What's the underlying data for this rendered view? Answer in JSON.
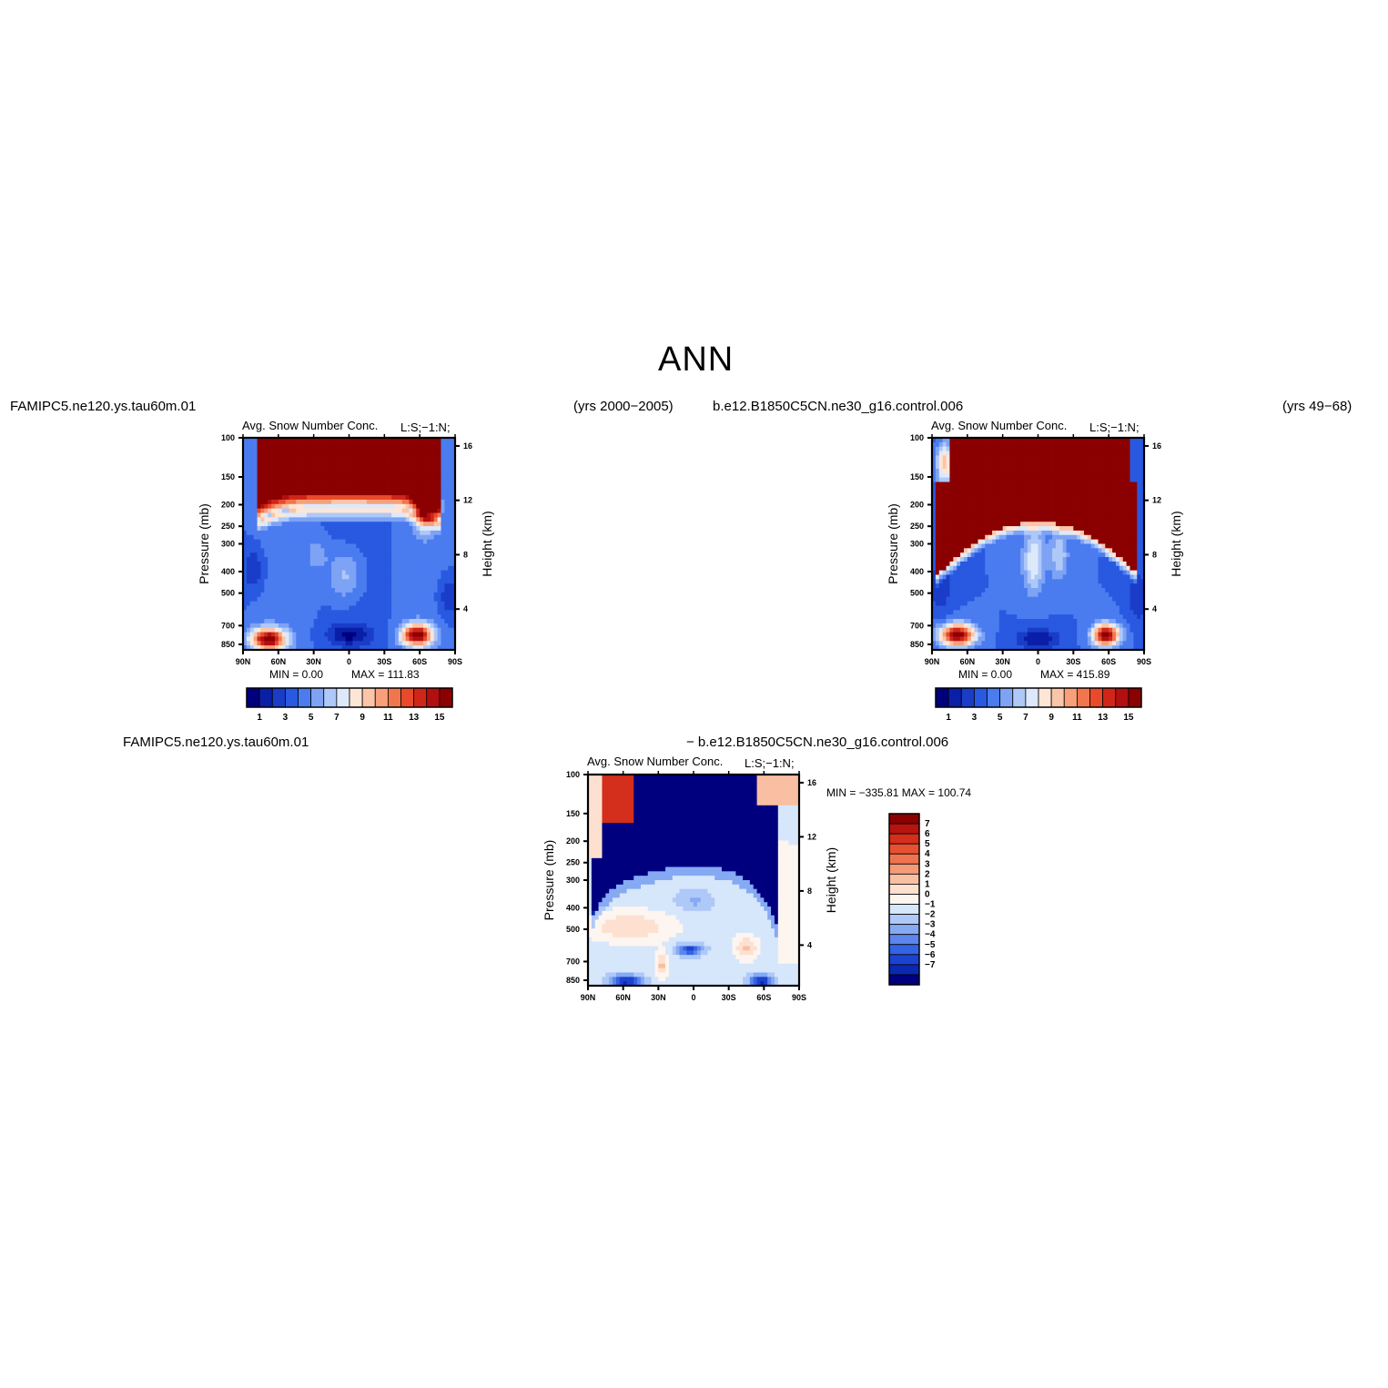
{
  "header": {
    "title": "ANN"
  },
  "top_left": {
    "case_name": "FAMIPC5.ne120.ys.tau60m.01",
    "years": "(yrs 2000−2005)",
    "plot_title": "Avg. Snow Number Conc.",
    "units": "L:S;−1:N;",
    "min_text": "MIN =     0.00",
    "max_text": "MAX = 111.83"
  },
  "top_right": {
    "case_name": "b.e12.B1850C5CN.ne30_g16.control.006",
    "years": "(yrs 49−68)",
    "plot_title": "Avg. Snow Number Conc.",
    "units": "L:S;−1:N;",
    "min_text": "MIN =     0.00",
    "max_text": "MAX = 415.89"
  },
  "bottom": {
    "case_name_a": "FAMIPC5.ne120.ys.tau60m.01",
    "case_name_b": "− b.e12.B1850C5CN.ne30_g16.control.006",
    "plot_title": "Avg. Snow Number Conc.",
    "units": "L:S;−1:N;",
    "minmax_text": "MIN = −335.81   MAX = 100.74"
  },
  "chart_data": [
    {
      "type": "heatmap",
      "subtype": "zonal-mean pressure-latitude contour",
      "title": "Avg. Snow Number Conc.",
      "units": "L:S;−1:N;",
      "ylabel": "Pressure (mb)",
      "ylabel_right": "Height (km)",
      "x_ticks": [
        "90N",
        "60N",
        "30N",
        "0",
        "30S",
        "60S",
        "90S"
      ],
      "y_ticks": [
        "100",
        "150",
        "200",
        "250",
        "300",
        "400",
        "500",
        "700",
        "850"
      ],
      "y_ticks_right": [
        "16",
        "12",
        "8",
        "4"
      ],
      "yscale": "log",
      "ylim": [
        100,
        900
      ],
      "min": 0.0,
      "max": 111.83,
      "colorbar_labels": [
        "1",
        "3",
        "5",
        "7",
        "9",
        "11",
        "13",
        "15"
      ],
      "colorbar_colors": [
        "#00007f",
        "#0a1fa8",
        "#1a3dc8",
        "#2859e0",
        "#4a7cf0",
        "#7ea3f5",
        "#aec8f8",
        "#dde9fb",
        "#fde6d6",
        "#fbc5a8",
        "#f7a07a",
        "#f2764d",
        "#e84a2b",
        "#d0261a",
        "#b30e10",
        "#8b0000"
      ]
    },
    {
      "type": "heatmap",
      "subtype": "zonal-mean pressure-latitude contour",
      "title": "Avg. Snow Number Conc.",
      "units": "L:S;−1:N;",
      "ylabel": "Pressure (mb)",
      "ylabel_right": "Height (km)",
      "x_ticks": [
        "90N",
        "60N",
        "30N",
        "0",
        "30S",
        "60S",
        "90S"
      ],
      "y_ticks": [
        "100",
        "150",
        "200",
        "250",
        "300",
        "400",
        "500",
        "700",
        "850"
      ],
      "y_ticks_right": [
        "16",
        "12",
        "8",
        "4"
      ],
      "yscale": "log",
      "ylim": [
        100,
        900
      ],
      "min": 0.0,
      "max": 415.89,
      "colorbar_labels": [
        "1",
        "3",
        "5",
        "7",
        "9",
        "11",
        "13",
        "15"
      ],
      "colorbar_colors": [
        "#00007f",
        "#0a1fa8",
        "#1a3dc8",
        "#2859e0",
        "#4a7cf0",
        "#7ea3f5",
        "#aec8f8",
        "#dde9fb",
        "#fde6d6",
        "#fbc5a8",
        "#f7a07a",
        "#f2764d",
        "#e84a2b",
        "#d0261a",
        "#b30e10",
        "#8b0000"
      ]
    },
    {
      "type": "heatmap",
      "subtype": "zonal-mean pressure-latitude difference contour",
      "title": "Avg. Snow Number Conc.",
      "units": "L:S;−1:N;",
      "ylabel": "Pressure (mb)",
      "ylabel_right": "Height (km)",
      "x_ticks": [
        "90N",
        "60N",
        "30N",
        "0",
        "30S",
        "60S",
        "90S"
      ],
      "y_ticks": [
        "100",
        "150",
        "200",
        "250",
        "300",
        "400",
        "500",
        "700",
        "850"
      ],
      "y_ticks_right": [
        "16",
        "12",
        "8",
        "4"
      ],
      "yscale": "log",
      "ylim": [
        100,
        900
      ],
      "min": -335.81,
      "max": 100.74,
      "colorbar_labels": [
        "7",
        "6",
        "5",
        "4",
        "3",
        "2",
        "1",
        "0",
        "−1",
        "−2",
        "−3",
        "−4",
        "−5",
        "−6",
        "−7"
      ],
      "colorbar_colors": [
        "#8b0000",
        "#b8140f",
        "#d42e1c",
        "#e8512f",
        "#f07350",
        "#f59a78",
        "#f9bfa2",
        "#fde0d0",
        "#fdf5ef",
        "#d6e6fb",
        "#aec8f8",
        "#86a9f3",
        "#5c86ec",
        "#3463e3",
        "#1c43cf",
        "#0c28b0",
        "#00007f"
      ]
    }
  ]
}
